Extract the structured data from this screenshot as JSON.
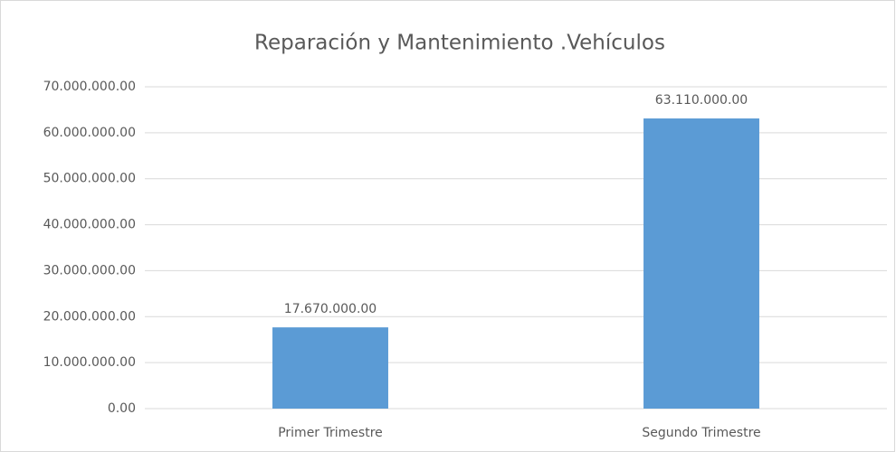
{
  "chart_data": {
    "type": "bar",
    "title": "Reparación y Mantenimiento .Vehículos",
    "categories": [
      "Primer Trimestre",
      "Segundo Trimestre"
    ],
    "values": [
      17670000,
      63110000
    ],
    "value_labels": [
      "17.670.000.00",
      "63.110.000.00"
    ],
    "color": "#5b9bd5",
    "ylim": [
      0,
      70000000
    ],
    "yticks": [
      {
        "value": 0,
        "label": "0.00"
      },
      {
        "value": 10000000,
        "label": "10.000.000.00"
      },
      {
        "value": 20000000,
        "label": "20.000.000.00"
      },
      {
        "value": 30000000,
        "label": "30.000.000.00"
      },
      {
        "value": 40000000,
        "label": "40.000.000.00"
      },
      {
        "value": 50000000,
        "label": "50.000.000.00"
      },
      {
        "value": 60000000,
        "label": "60.000.000.00"
      },
      {
        "value": 70000000,
        "label": "70.000.000.00"
      }
    ],
    "grid": true
  }
}
